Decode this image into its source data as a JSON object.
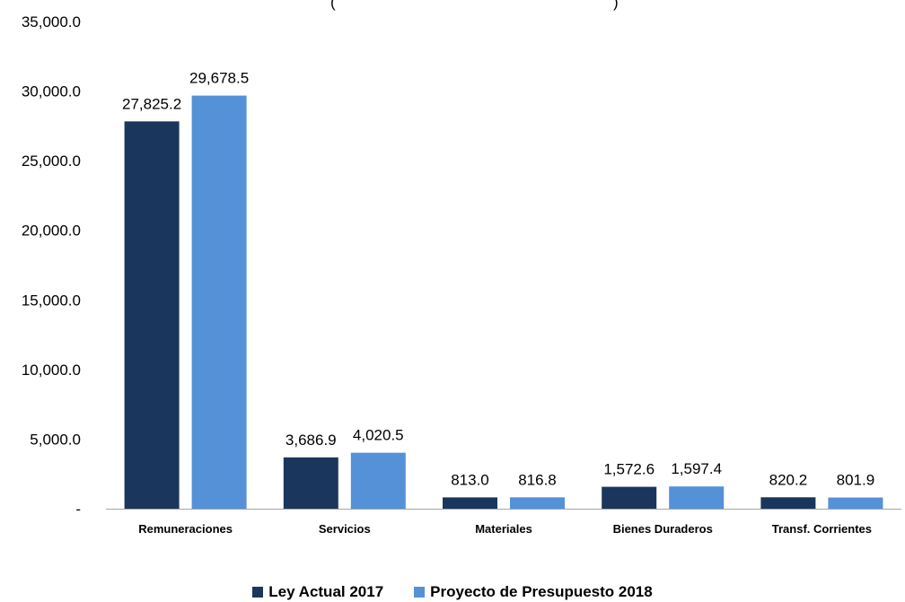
{
  "chart_data": {
    "type": "bar",
    "title": "(",
    "title_end": ")",
    "categories": [
      "Remuneraciones",
      "Servicios",
      "Materiales",
      "Bienes Duraderos",
      "Transf. Corrientes"
    ],
    "series": [
      {
        "name": "Ley Actual 2017",
        "color": "#1b365d",
        "values": [
          27825.2,
          3686.9,
          813.0,
          1572.6,
          820.2
        ],
        "labels": [
          "27,825.2",
          "3,686.9",
          "813.0",
          "1,572.6",
          "820.2"
        ]
      },
      {
        "name": "Proyecto de Presupuesto 2018",
        "color": "#5591d6",
        "values": [
          29678.5,
          4020.5,
          816.8,
          1597.4,
          801.9
        ],
        "labels": [
          "29,678.5",
          "4,020.5",
          "816.8",
          "1,597.4",
          "801.9"
        ]
      }
    ],
    "ylim": [
      0,
      35000
    ],
    "yticks": [
      0,
      5000,
      10000,
      15000,
      20000,
      25000,
      30000,
      35000
    ],
    "ytick_labels": [
      "-",
      "5,000.0",
      "10,000.0",
      "15,000.0",
      "20,000.0",
      "25,000.0",
      "30,000.0",
      "35,000.0"
    ],
    "grid": false,
    "legend_position": "bottom"
  }
}
